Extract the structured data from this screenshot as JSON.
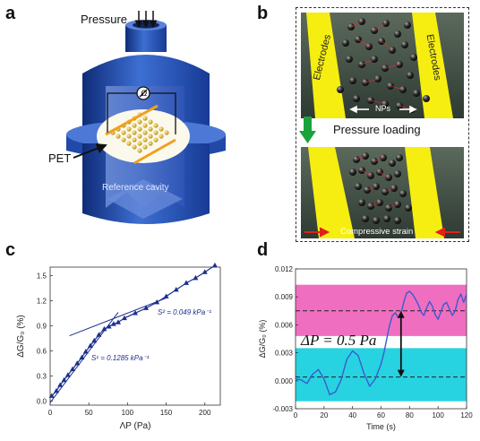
{
  "panels": {
    "a": {
      "letter": "a",
      "pressure_label": "Pressure",
      "pet_label": "PET",
      "cavity_label": "Reference cavity"
    },
    "b": {
      "letter": "b",
      "electrodes_left": "Electrodes",
      "electrodes_right": "Electrodes",
      "nps_label": "NPs",
      "pressure_loading": "Pressure loading",
      "compressive_strain": "Compressive strain"
    },
    "c": {
      "letter": "c",
      "slope1": "S¹ = 0.1285 kPa⁻¹",
      "slope2": "S² = 0.049 kPa⁻¹"
    },
    "d": {
      "letter": "d",
      "annotation": "ΔP = 0.5 Pa"
    }
  },
  "colors": {
    "dark_blue": "#1a2f8c",
    "pink_band": "#f06ec0",
    "cyan_band": "#27d3e0",
    "electrode_yellow": "#ffee00",
    "arrow_green": "#1aa33a",
    "arrow_red": "#e0201a"
  },
  "chart_data": [
    {
      "type": "scatter",
      "title": "",
      "xlabel": "ΛP (Pa)",
      "ylabel": "ΔG/G₀ (%)",
      "xlim": [
        0,
        220
      ],
      "ylim": [
        -0.05,
        1.6
      ],
      "xticks": [
        "0",
        "50",
        "100",
        "150",
        "200"
      ],
      "yticks": [
        "0.0",
        "0.3",
        "0.6",
        "0.9",
        "1.2",
        "1.5"
      ],
      "series": [
        {
          "x": [
            2,
            8,
            13,
            18,
            23,
            29,
            35,
            41,
            46,
            52,
            57,
            63,
            70,
            76,
            82,
            88,
            96,
            110,
            124,
            138,
            150,
            163,
            176,
            188,
            200,
            213
          ],
          "y": [
            0.06,
            0.12,
            0.19,
            0.25,
            0.31,
            0.38,
            0.45,
            0.52,
            0.59,
            0.66,
            0.72,
            0.79,
            0.86,
            0.89,
            0.92,
            0.94,
            0.99,
            1.05,
            1.11,
            1.18,
            1.25,
            1.33,
            1.41,
            1.47,
            1.54,
            1.62
          ]
        }
      ],
      "fit_lines": [
        {
          "x": [
            0,
            88
          ],
          "y": [
            -0.02,
            1.06
          ]
        },
        {
          "x": [
            25,
            150
          ],
          "y": [
            0.78,
            1.23
          ]
        }
      ]
    },
    {
      "type": "line",
      "title": "",
      "xlabel": "Time (s)",
      "ylabel": "ΔG/G₀ (%)",
      "xlim": [
        0,
        120
      ],
      "ylim": [
        -0.003,
        0.012
      ],
      "xticks": [
        "0",
        "20",
        "40",
        "60",
        "80",
        "100",
        "120"
      ],
      "yticks": [
        "-0.003",
        "0.000",
        "0.003",
        "0.006",
        "0.009",
        "0.012"
      ],
      "bands": [
        {
          "ymin": 0.0048,
          "ymax": 0.0103,
          "color": "#f06ec0"
        },
        {
          "ymin": -0.0022,
          "ymax": 0.0035,
          "color": "#27d3e0"
        }
      ],
      "reference_lines": [
        0.0075,
        0.0004
      ],
      "series": [
        {
          "x": [
            0,
            4,
            8,
            12,
            16,
            20,
            24,
            28,
            32,
            36,
            40,
            44,
            48,
            52,
            56,
            60,
            62,
            64,
            66,
            68,
            70,
            72,
            74,
            76,
            78,
            80,
            82,
            84,
            86,
            88,
            90,
            92,
            94,
            96,
            98,
            100,
            102,
            104,
            106,
            108,
            110,
            112,
            114,
            116,
            118,
            120
          ],
          "y": [
            0.0002,
            0.0001,
            -0.0003,
            0.0007,
            0.0012,
            0.0002,
            -0.0015,
            -0.0012,
            0.0001,
            0.0023,
            0.0032,
            0.0027,
            0.0008,
            -0.0006,
            0.0002,
            0.0018,
            0.003,
            0.0045,
            0.006,
            0.007,
            0.0073,
            0.0068,
            0.0072,
            0.0085,
            0.0094,
            0.0096,
            0.0093,
            0.0088,
            0.0082,
            0.0074,
            0.007,
            0.0078,
            0.0085,
            0.008,
            0.0071,
            0.0066,
            0.0074,
            0.0082,
            0.0084,
            0.0077,
            0.007,
            0.0075,
            0.0087,
            0.0093,
            0.0084,
            0.0093
          ]
        }
      ]
    }
  ]
}
